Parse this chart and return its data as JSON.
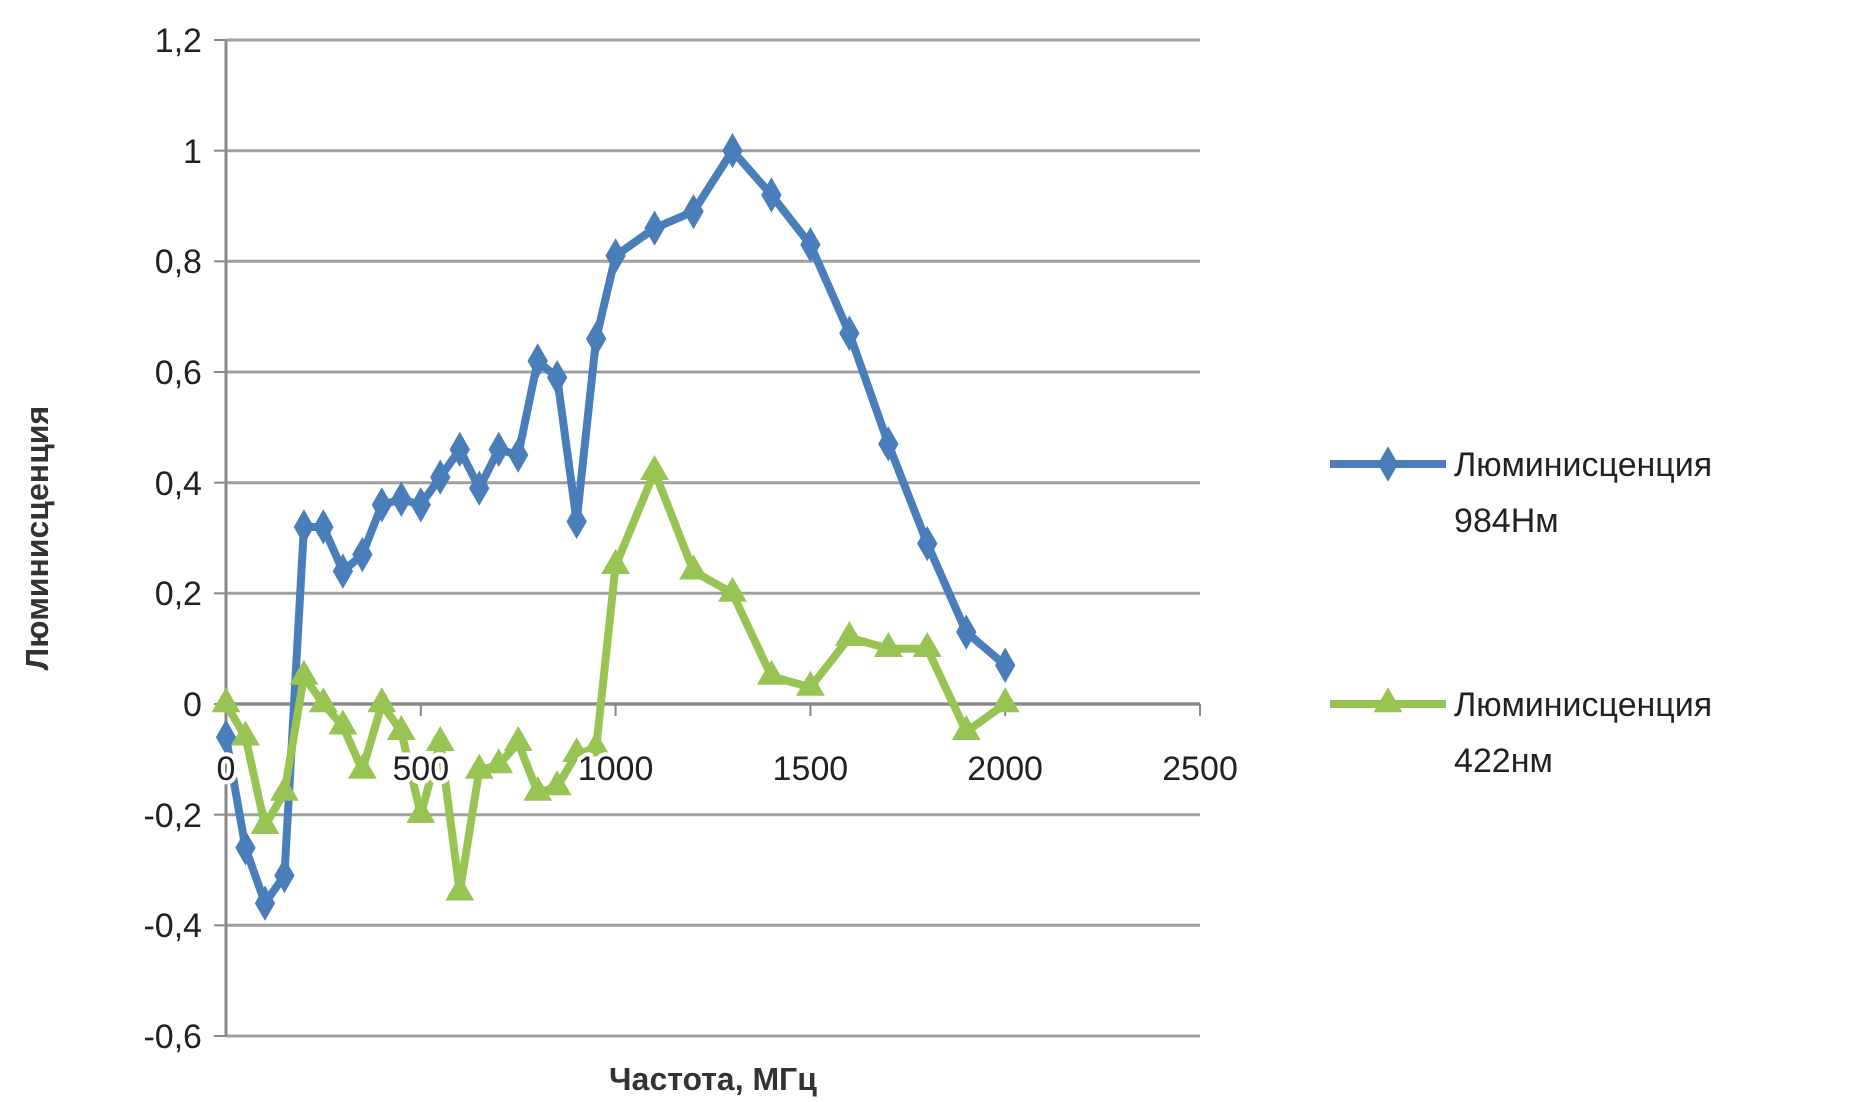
{
  "chart_data": {
    "type": "line",
    "xlabel": "Частота, МГц",
    "ylabel": "Люминисценция",
    "xlim": [
      0,
      2500
    ],
    "xticks": [
      0,
      500,
      1000,
      1500,
      2000,
      2500
    ],
    "ylim": [
      -0.6,
      1.2
    ],
    "yticks": [
      {
        "value": -0.6,
        "label": "-0,6"
      },
      {
        "value": -0.4,
        "label": "-0,4"
      },
      {
        "value": -0.2,
        "label": "-0,2"
      },
      0,
      {
        "value": 0.2,
        "label": "0,2"
      },
      {
        "value": 0.4,
        "label": "0,4"
      },
      {
        "value": 0.6,
        "label": "0,6"
      },
      {
        "value": 0.8,
        "label": "0,8"
      },
      1,
      {
        "value": 1.2,
        "label": "1,2"
      }
    ],
    "grid": "y",
    "legend": "right",
    "line_style": "solid",
    "x": [
      0,
      50,
      100,
      150,
      200,
      250,
      300,
      350,
      400,
      450,
      500,
      550,
      600,
      650,
      700,
      750,
      800,
      850,
      900,
      950,
      1000,
      1100,
      1200,
      1300,
      1400,
      1500,
      1600,
      1700,
      1800,
      1900,
      2000
    ],
    "series": [
      {
        "name": "Люминисценция 984Нм",
        "color": "#4a7ebb",
        "marker": "diamond",
        "values": [
          -0.06,
          -0.26,
          -0.36,
          -0.31,
          0.32,
          0.32,
          0.24,
          0.27,
          0.36,
          0.37,
          0.36,
          0.41,
          0.46,
          0.39,
          0.46,
          0.45,
          0.62,
          0.59,
          0.33,
          0.66,
          0.81,
          0.86,
          0.89,
          1.0,
          0.92,
          0.83,
          0.67,
          0.47,
          0.29,
          0.13,
          0.07
        ]
      },
      {
        "name": "Люминисценция 422нм",
        "color": "#98c454",
        "marker": "triangle",
        "values": [
          0.0,
          -0.06,
          -0.22,
          -0.16,
          0.05,
          0.0,
          -0.04,
          -0.12,
          0.0,
          -0.05,
          -0.2,
          -0.07,
          -0.34,
          -0.12,
          -0.11,
          -0.07,
          -0.16,
          -0.15,
          -0.09,
          -0.08,
          0.25,
          0.42,
          0.24,
          0.2,
          0.05,
          0.03,
          0.12,
          0.1,
          0.1,
          -0.05,
          0.0
        ]
      }
    ]
  }
}
